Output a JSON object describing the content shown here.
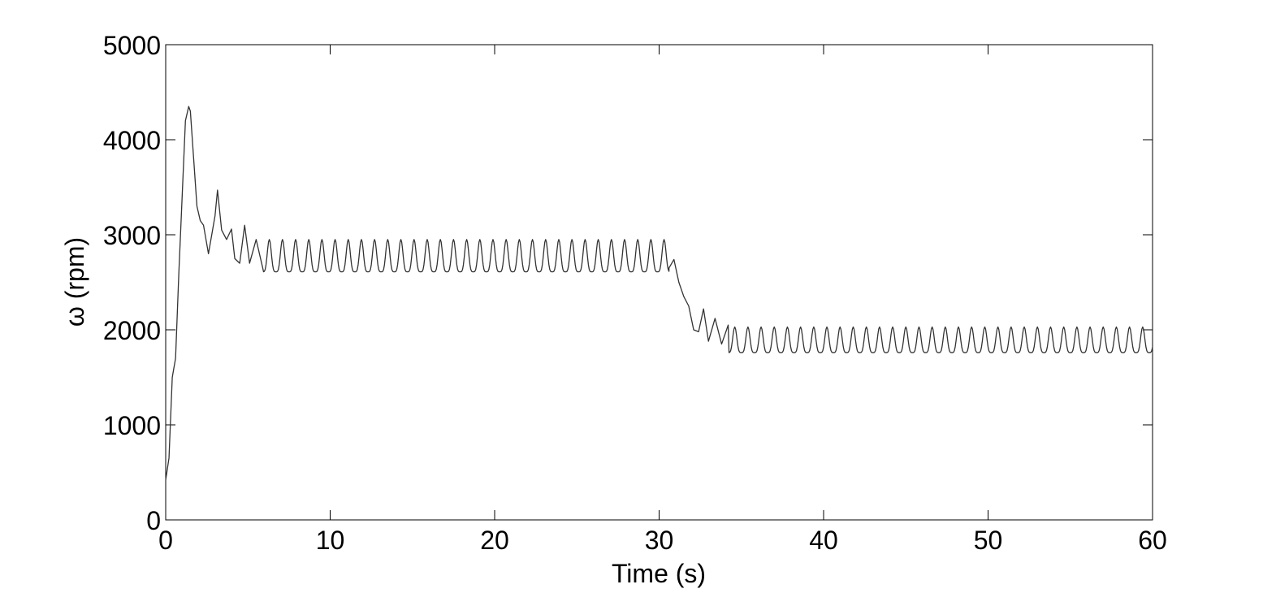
{
  "chart_data": {
    "type": "line",
    "title": "",
    "xlabel": "Time (s)",
    "ylabel": "ω (rpm)",
    "xlim": [
      0,
      60
    ],
    "ylim": [
      0,
      5000
    ],
    "xticks": [
      0,
      10,
      20,
      30,
      40,
      50,
      60
    ],
    "yticks": [
      0,
      1000,
      2000,
      3000,
      4000,
      5000
    ],
    "xtick_labels": [
      "0",
      "10",
      "20",
      "30",
      "40",
      "50",
      "60"
    ],
    "ytick_labels": [
      "0",
      "1000",
      "2000",
      "3000",
      "4000",
      "5000"
    ],
    "grid": false,
    "legend": "none",
    "line_color": "#333333",
    "series": [
      {
        "name": "",
        "x": [
          0,
          0.2,
          0.4,
          0.6,
          0.8,
          1.0,
          1.2,
          1.4,
          1.5,
          1.7,
          1.9,
          2.1,
          2.3,
          2.6,
          3.0,
          3.15,
          3.4,
          3.7,
          4.0,
          4.2,
          4.5,
          4.8,
          5.1,
          5.5,
          5.9
        ],
        "values": [
          420,
          650,
          1500,
          1700,
          2600,
          3400,
          4200,
          4350,
          4300,
          3800,
          3300,
          3150,
          3100,
          2800,
          3200,
          3470,
          3050,
          2950,
          3060,
          2750,
          2700,
          3100,
          2700,
          2950,
          2650
        ],
        "segments": [
          {
            "type": "oscillation",
            "x_start": 5.9,
            "x_end": 30.6,
            "period": 0.8,
            "peak": 2950,
            "trough": 2610
          },
          {
            "type": "transition",
            "x": [
              30.6,
              30.9,
              31.2,
              31.5,
              31.8,
              32.1,
              32.4,
              32.7,
              33.0,
              33.4,
              33.8,
              34.2
            ],
            "values": [
              2650,
              2740,
              2500,
              2350,
              2250,
              2000,
              1980,
              2220,
              1880,
              2120,
              1850,
              2050
            ]
          },
          {
            "type": "oscillation",
            "x_start": 34.2,
            "x_end": 60,
            "period": 0.8,
            "peak": 2030,
            "trough": 1760
          }
        ]
      }
    ]
  }
}
